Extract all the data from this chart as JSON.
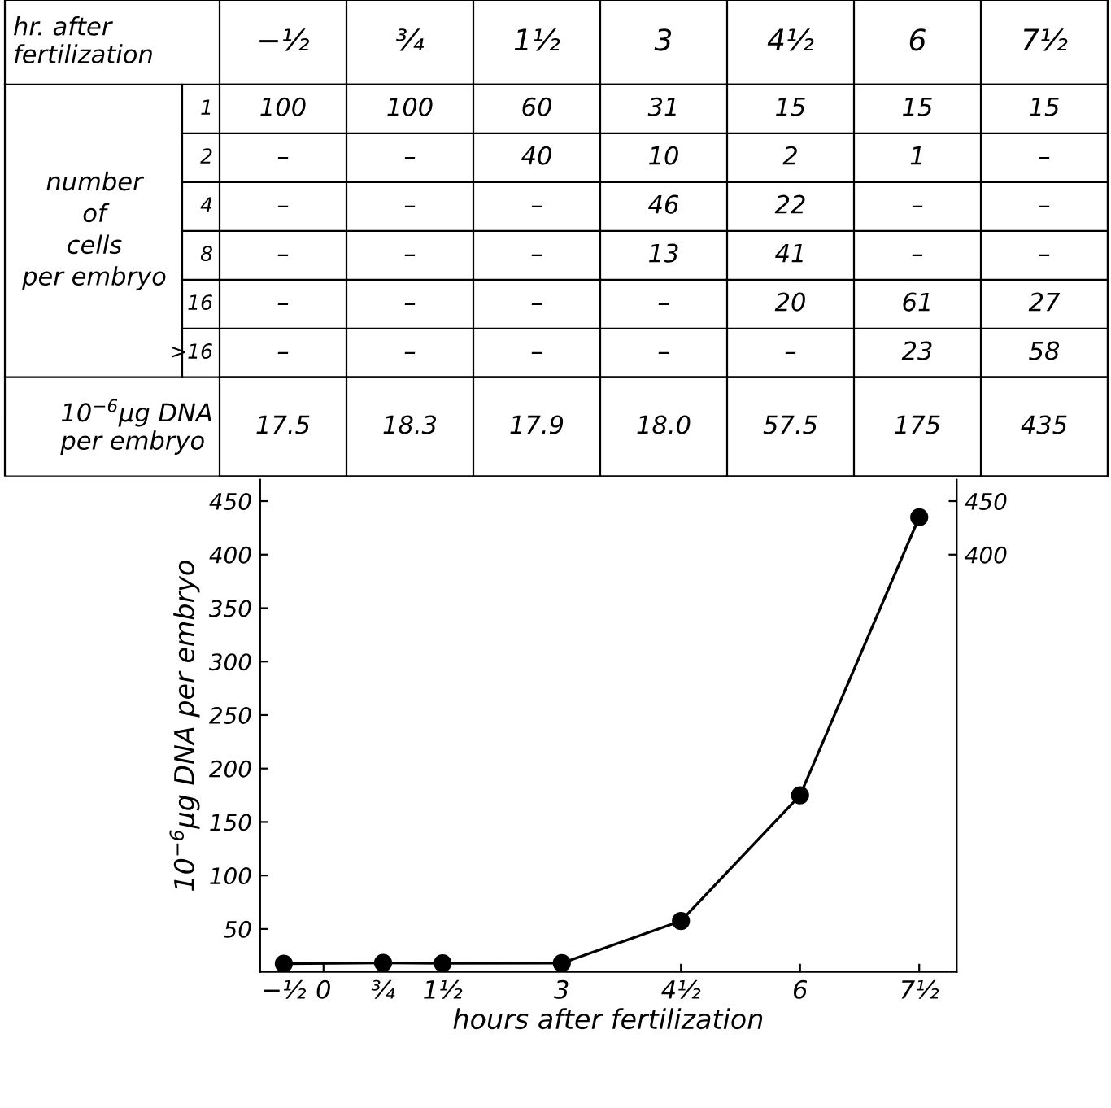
{
  "chart_data": [
    {
      "type": "heatmap",
      "xlabel": "hr. after fertilization",
      "ylabel": "number of cells per embryo",
      "categories": [
        "−½",
        "¾",
        "1½",
        "3",
        "4½",
        "6",
        "7½"
      ],
      "y_categories": [
        "1",
        "2",
        "4",
        "8",
        "16",
        ">16",
        "10$^{−6}$μg DNA per embryo"
      ],
      "cells": [
        [
          100,
          100,
          60,
          31,
          15,
          15,
          15
        ],
        [
          null,
          null,
          40,
          10,
          2,
          1,
          null
        ],
        [
          null,
          null,
          null,
          46,
          22,
          null,
          null
        ],
        [
          null,
          null,
          null,
          13,
          41,
          null,
          null
        ],
        [
          null,
          null,
          null,
          null,
          20,
          61,
          27
        ],
        [
          null,
          null,
          null,
          null,
          null,
          23,
          58
        ],
        [
          17.5,
          18.3,
          17.9,
          18.0,
          57.5,
          175,
          435
        ]
      ],
      "cell_labels": [
        [
          "100",
          "100",
          "60",
          "31",
          "15",
          "15",
          "15"
        ],
        [
          "–",
          "–",
          "40",
          "10",
          "2",
          "1",
          "–"
        ],
        [
          "–",
          "–",
          "–",
          "46",
          "22",
          "–",
          "–"
        ],
        [
          "–",
          "–",
          "–",
          "13",
          "41",
          "–",
          "–"
        ],
        [
          "–",
          "–",
          "–",
          "–",
          "20",
          "61",
          "27"
        ],
        [
          "–",
          "–",
          "–",
          "–",
          "–",
          "23",
          "58"
        ],
        [
          "17.5",
          "18.3",
          "17.9",
          "18.0",
          "57.5",
          "175",
          "435"
        ]
      ]
    },
    {
      "type": "line",
      "xlabel": "hours after fertilization",
      "ylabel": "10$^{−6}$μg DNA per embryo",
      "x": [
        -0.5,
        0.75,
        1.5,
        3,
        4.5,
        6,
        7.5
      ],
      "series": [
        {
          "color": "#000000",
          "values": [
            17.5,
            18.3,
            17.9,
            18.0,
            57.5,
            175,
            435
          ]
        }
      ],
      "xlim": [
        -0.8,
        7.97
      ],
      "xticks": [
        {
          "value": -0.5,
          "label": "−½"
        },
        0,
        {
          "value": 0.75,
          "label": "¾"
        },
        {
          "value": 1.5,
          "label": "1½"
        },
        3,
        {
          "value": 4.5,
          "label": "4½"
        },
        6,
        {
          "value": 7.5,
          "label": "7½"
        }
      ],
      "ylim": [
        10,
        470
      ],
      "yticks": [
        50,
        100,
        150,
        200,
        250,
        300,
        350,
        400,
        450
      ],
      "y2lim": [
        10,
        470
      ],
      "y2ticks": [
        400,
        450
      ],
      "marker": "circle",
      "line_style": "solid",
      "grid": false,
      "legend": false
    }
  ]
}
